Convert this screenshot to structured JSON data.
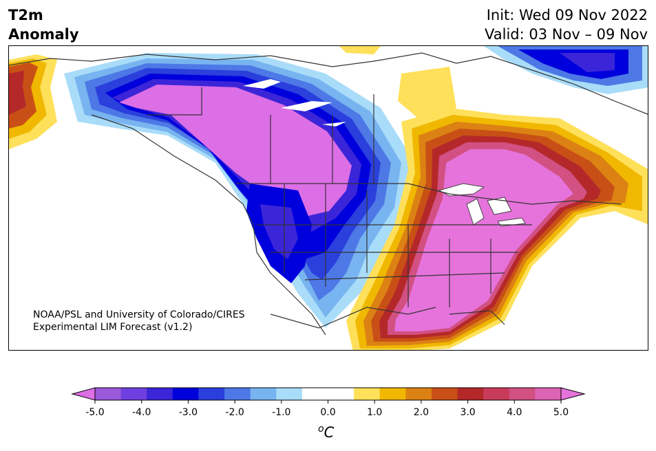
{
  "title": {
    "variable": "T2m",
    "subtitle": "Anomaly"
  },
  "header": {
    "init": "Init: Wed 09 Nov 2022",
    "valid": "Valid: 03 Nov – 09 Nov"
  },
  "credit": {
    "line1": "NOAA/PSL and University of Colorado/CIRES",
    "line2": "Experimental LIM Forecast (v1.2)"
  },
  "colorbar": {
    "units_base": "C",
    "units_sup": "o",
    "ticks": [
      "-5.0",
      "-4.0",
      "-3.0",
      "-2.0",
      "-1.0",
      "0.0",
      "1.0",
      "2.0",
      "3.0",
      "4.0",
      "5.0"
    ],
    "colors": [
      "#9b59dc",
      "#6f3fdf",
      "#3b25d8",
      "#0000dc",
      "#2a3fdc",
      "#4d78e6",
      "#78b4f0",
      "#a9dcf8",
      "#ffffff",
      "#ffffff",
      "#fee05a",
      "#f0b800",
      "#dc8214",
      "#c85016",
      "#b4282a",
      "#c83c5a",
      "#d25082",
      "#dc64b4"
    ],
    "low_color": "#dc6ee6",
    "high_color": "#e673dc"
  },
  "map": {
    "regions": [
      {
        "name": "cold anomaly west",
        "value_c": -5
      },
      {
        "name": "warm anomaly east",
        "value_c": 5
      }
    ]
  }
}
